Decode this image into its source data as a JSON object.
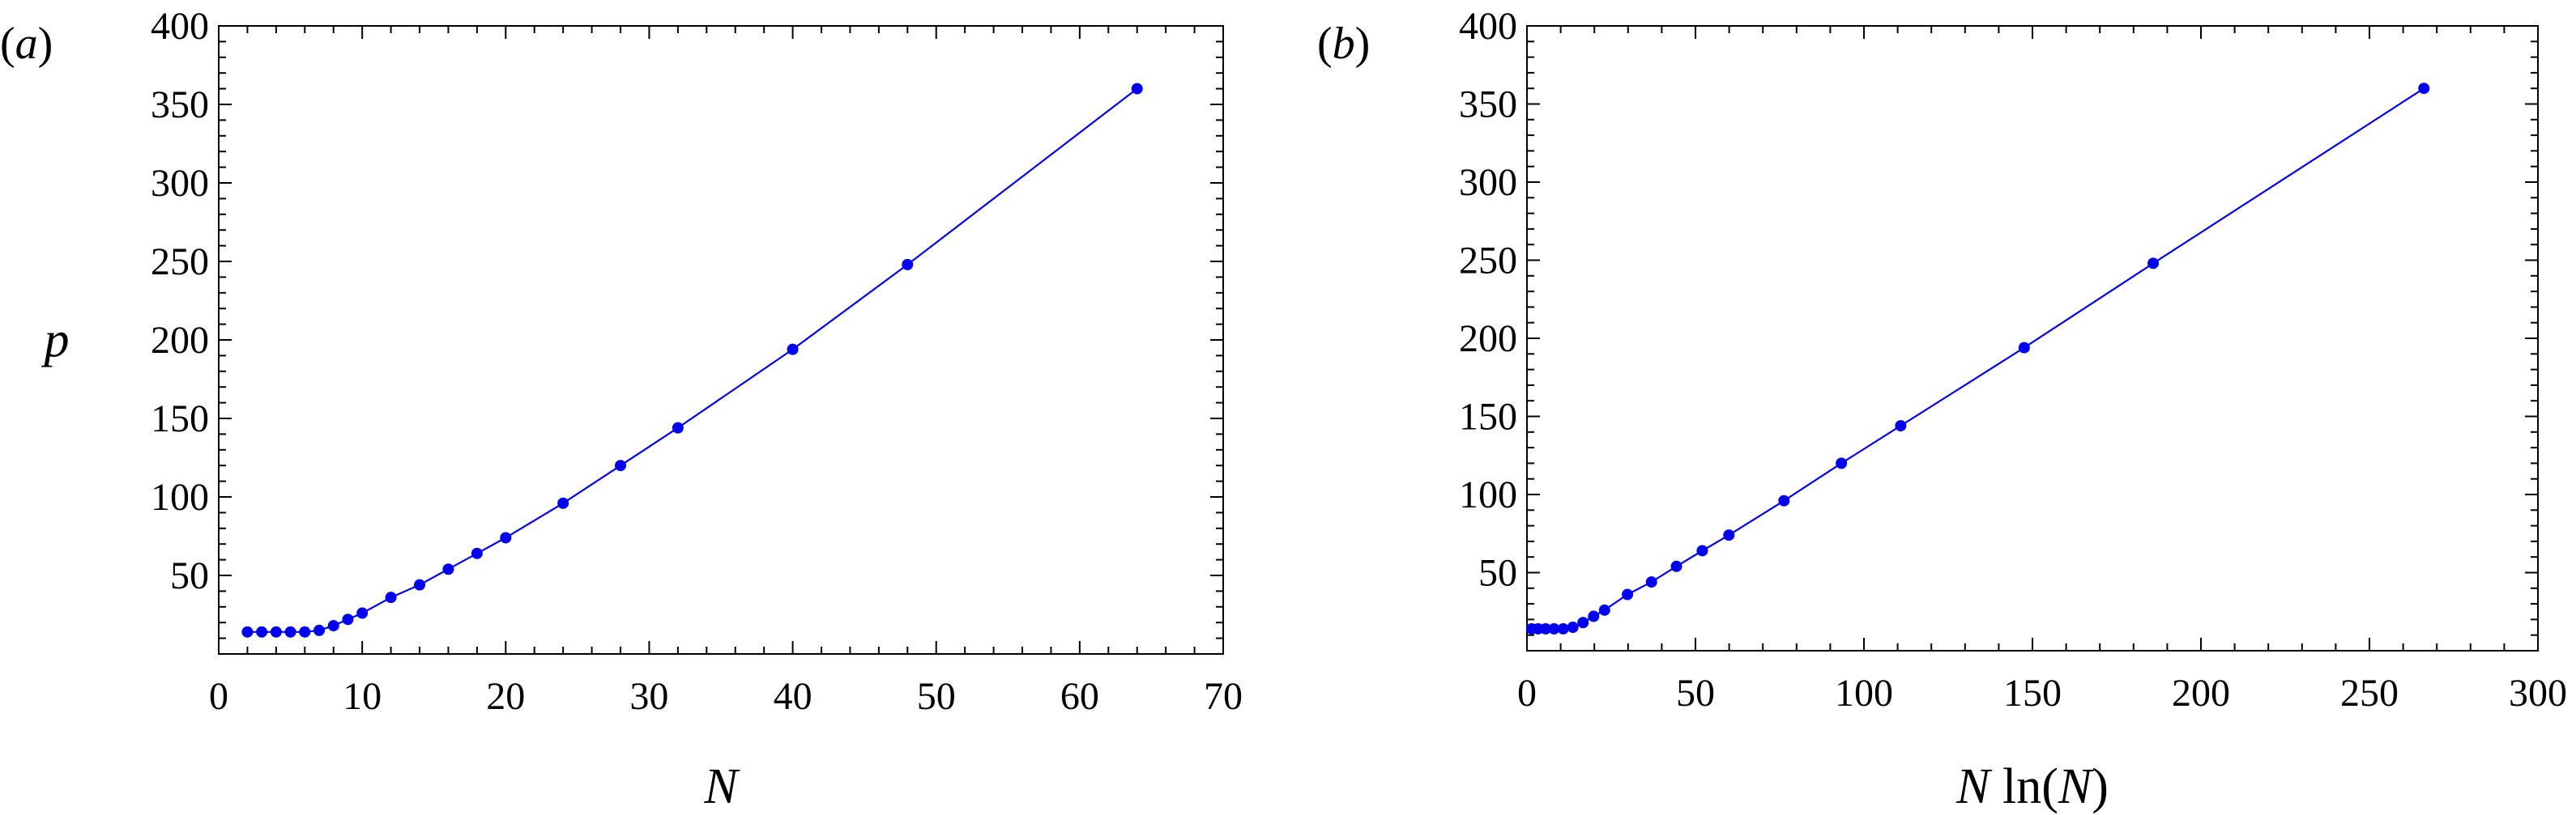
{
  "chart_data": [
    {
      "type": "line",
      "panel_label": "(a)",
      "xlabel": "N",
      "ylabel": "p",
      "xlim": [
        0,
        70
      ],
      "ylim": [
        0,
        400
      ],
      "xticks": [
        0,
        10,
        20,
        30,
        40,
        50,
        60,
        70
      ],
      "yticks": [
        50,
        100,
        150,
        200,
        250,
        300,
        350,
        400
      ],
      "grid": false,
      "color": "#0000ee",
      "series": [
        {
          "x": [
            2,
            3,
            4,
            5,
            6,
            7,
            8,
            9,
            10,
            12,
            14,
            16,
            18,
            20,
            24,
            28,
            32,
            40,
            48,
            64
          ],
          "y": [
            14,
            14,
            14,
            14,
            14,
            15,
            18,
            22,
            26,
            36,
            44,
            54,
            64,
            74,
            96,
            120,
            144,
            194,
            248,
            360
          ]
        }
      ]
    },
    {
      "type": "line",
      "panel_label": "(b)",
      "xlabel": "N ln(N)",
      "ylabel": "",
      "xlim": [
        0,
        300
      ],
      "ylim": [
        0,
        400
      ],
      "xticks": [
        0,
        50,
        100,
        150,
        200,
        250,
        300
      ],
      "yticks": [
        50,
        100,
        150,
        200,
        250,
        300,
        350,
        400
      ],
      "grid": false,
      "color": "#0000ee",
      "series": [
        {
          "x": [
            1.39,
            3.3,
            5.55,
            8.05,
            10.75,
            13.62,
            16.64,
            19.78,
            23.03,
            29.82,
            36.95,
            44.36,
            52.03,
            59.91,
            76.27,
            93.3,
            110.9,
            147.56,
            185.82,
            266.17
          ],
          "y": [
            14,
            14,
            14,
            14,
            14,
            15,
            18,
            22,
            26,
            36,
            44,
            54,
            64,
            74,
            96,
            120,
            144,
            194,
            248,
            360
          ]
        }
      ]
    }
  ]
}
